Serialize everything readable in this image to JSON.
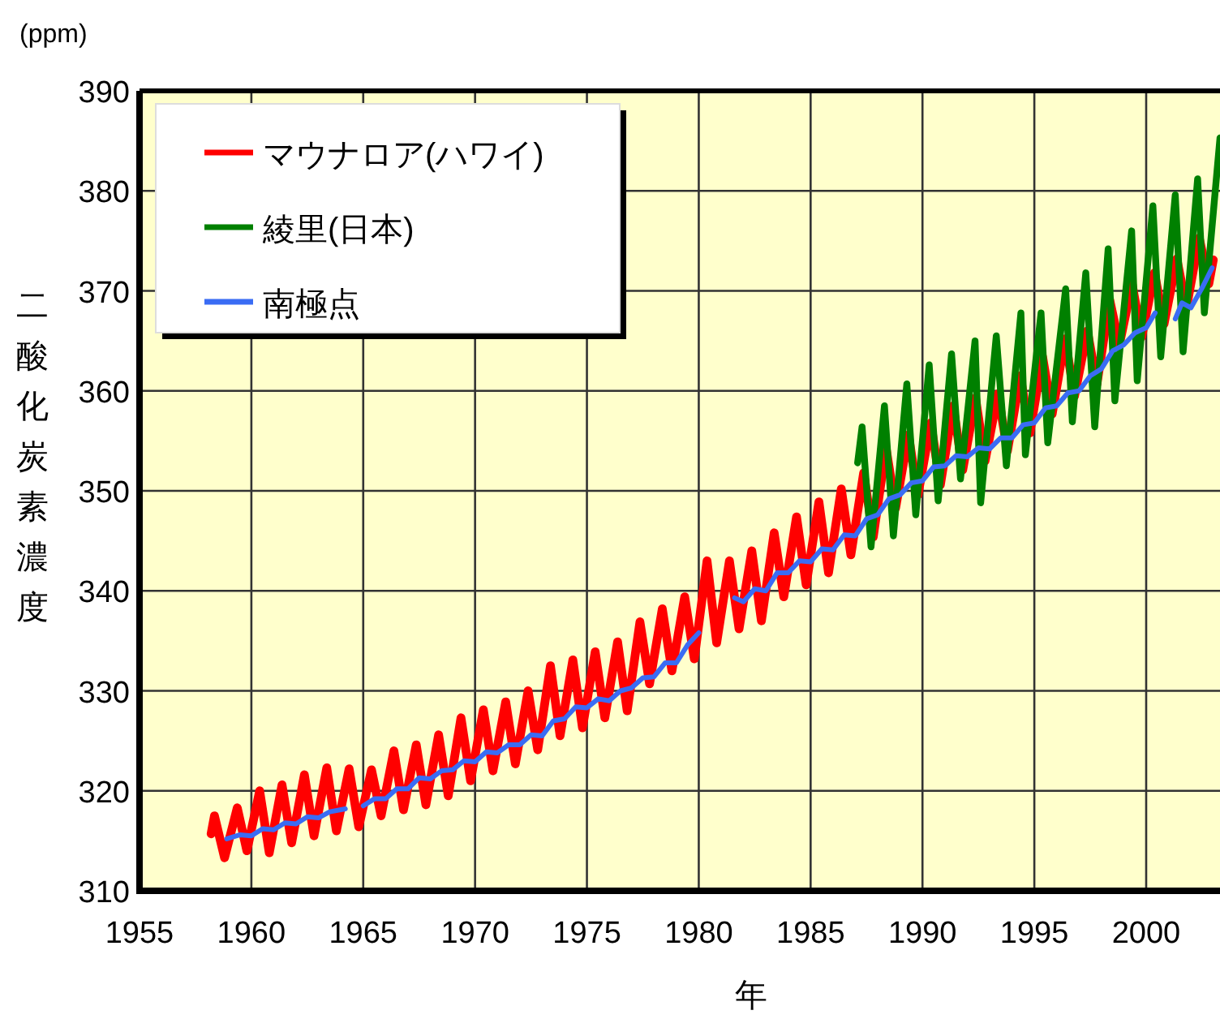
{
  "chart_data": {
    "type": "line",
    "xlabel": "年",
    "ylabel": "二酸化炭素濃度",
    "annotations": [
      "(ppm)"
    ],
    "xlim": [
      1955,
      2003.3
    ],
    "ylim": [
      310,
      390
    ],
    "xticks": [
      1955,
      1960,
      1965,
      1970,
      1975,
      1980,
      1985,
      1990,
      1995,
      2000
    ],
    "yticks": [
      310,
      320,
      330,
      340,
      350,
      360,
      370,
      380,
      390
    ],
    "grid": true,
    "legend": "top left",
    "series": [
      {
        "name": "マウナロア(ハワイ)",
        "color": "#ff0000",
        "x": [
          1958.2,
          1958.35,
          1958.8,
          1959.37,
          1959.8,
          1960.37,
          1960.8,
          1961.37,
          1961.8,
          1962.37,
          1962.8,
          1963.37,
          1963.8,
          1964.37,
          1964.8,
          1965.37,
          1965.8,
          1966.37,
          1966.8,
          1967.37,
          1967.8,
          1968.37,
          1968.8,
          1969.37,
          1969.8,
          1970.37,
          1970.8,
          1971.37,
          1971.8,
          1972.37,
          1972.8,
          1973.37,
          1973.8,
          1974.37,
          1974.8,
          1975.37,
          1975.8,
          1976.37,
          1976.8,
          1977.37,
          1977.8,
          1978.37,
          1978.8,
          1979.37,
          1979.8,
          1980.37,
          1980.8,
          1981.37,
          1981.8,
          1982.37,
          1982.8,
          1983.37,
          1983.8,
          1984.37,
          1984.8,
          1985.37,
          1985.8,
          1986.37,
          1986.8,
          1987.37,
          1987.8,
          1988.37,
          1988.8,
          1989.37,
          1989.8,
          1990.37,
          1990.8,
          1991.37,
          1991.8,
          1992.37,
          1992.8,
          1993.37,
          1993.8,
          1994.37,
          1994.8,
          1995.37,
          1995.8,
          1996.37,
          1996.8,
          1997.37,
          1997.8,
          1998.37,
          1998.8,
          1999.37,
          1999.8,
          2000.37,
          2000.8,
          2001.37,
          2001.8,
          2002.37,
          2002.8,
          2003.0
        ],
        "values": [
          315.7,
          317.5,
          313.3,
          318.3,
          314.0,
          320.0,
          313.8,
          320.6,
          314.8,
          321.6,
          315.5,
          322.3,
          316.0,
          322.2,
          316.4,
          322.1,
          317.5,
          324.0,
          318.1,
          324.6,
          318.6,
          325.6,
          319.5,
          327.3,
          321.0,
          328.1,
          322.0,
          328.9,
          322.7,
          330.0,
          324.1,
          332.5,
          325.5,
          333.1,
          326.3,
          333.9,
          327.3,
          334.9,
          328.0,
          336.9,
          330.7,
          338.2,
          332.0,
          339.4,
          333.2,
          343.0,
          334.8,
          343.0,
          336.2,
          344.0,
          337.0,
          345.8,
          339.4,
          347.4,
          340.6,
          348.9,
          341.8,
          350.2,
          343.6,
          351.8,
          345.4,
          354.3,
          348.3,
          355.6,
          349.6,
          356.8,
          350.6,
          358.5,
          352.1,
          359.3,
          353.0,
          359.7,
          354.0,
          361.5,
          355.8,
          363.4,
          357.7,
          365.2,
          359.5,
          366.0,
          360.7,
          369.1,
          364.6,
          370.7,
          365.4,
          371.8,
          366.7,
          373.2,
          368.3,
          375.3,
          370.7,
          373.1
        ]
      },
      {
        "name": "綾里(日本)",
        "color": "#008000",
        "x": [
          1987.1,
          1987.3,
          1987.7,
          1988.3,
          1988.7,
          1989.3,
          1989.7,
          1990.3,
          1990.7,
          1991.3,
          1991.7,
          1992.35,
          1992.6,
          1993.3,
          1993.75,
          1994.4,
          1994.6,
          1995.3,
          1995.6,
          1996.4,
          1996.7,
          1997.3,
          1997.7,
          1998.3,
          1998.6,
          1999.35,
          1999.6,
          2000.3,
          2000.65,
          2001.3,
          2001.65,
          2002.3,
          2002.6,
          2003.3
        ],
        "values": [
          352.8,
          356.4,
          344.4,
          358.5,
          345.5,
          360.7,
          347.6,
          362.6,
          349.0,
          363.7,
          351.2,
          365.0,
          348.8,
          365.5,
          352.5,
          367.8,
          353.6,
          367.8,
          354.8,
          370.2,
          356.9,
          371.8,
          356.4,
          374.2,
          359.0,
          376.0,
          361.0,
          378.5,
          363.4,
          379.6,
          363.9,
          381.2,
          367.8,
          385.3
        ]
      },
      {
        "name": "南極点",
        "color": "#3a6cf4",
        "x": [
          1958.9,
          1959.5,
          1960.0,
          1960.5,
          1961.0,
          1961.5,
          1962.0,
          1962.5,
          1963.0,
          1963.5,
          1964.2,
          null,
          1965.0,
          1965.5,
          1966.0,
          1966.5,
          1967.0,
          1967.5,
          1968.0,
          1968.5,
          1969.0,
          1969.5,
          1970.0,
          1970.5,
          1971.0,
          1971.5,
          1972.0,
          1972.5,
          1973.0,
          1973.5,
          1974.0,
          1974.5,
          1975.0,
          1975.5,
          1976.0,
          1976.5,
          1977.0,
          1977.5,
          1978.0,
          1978.5,
          1979.0,
          1979.5,
          1980.0,
          null,
          1981.6,
          1982.0,
          1982.5,
          1983.0,
          1983.5,
          1984.0,
          1984.5,
          1985.0,
          1985.5,
          1986.0,
          1986.5,
          1987.0,
          1987.5,
          1988.0,
          1988.5,
          1989.0,
          1989.5,
          1990.0,
          1990.5,
          1991.0,
          1991.5,
          1992.0,
          1992.5,
          1993.0,
          1993.5,
          1994.0,
          1994.5,
          1995.0,
          1995.5,
          1996.0,
          1996.5,
          1997.0,
          1997.5,
          1998.0,
          1998.5,
          1999.0,
          1999.5,
          2000.0,
          2000.4,
          null,
          2001.3,
          2001.6,
          2002.0,
          2002.5,
          2002.95
        ],
        "values": [
          315.2,
          315.6,
          315.5,
          316.2,
          316.1,
          316.8,
          316.7,
          317.4,
          317.3,
          317.9,
          318.2,
          null,
          318.5,
          319.2,
          319.2,
          320.2,
          320.2,
          321.3,
          321.2,
          322.0,
          322.1,
          323.0,
          322.9,
          323.9,
          323.8,
          324.6,
          324.6,
          325.6,
          325.5,
          327.0,
          327.2,
          328.4,
          328.3,
          329.2,
          329.0,
          330.0,
          330.3,
          331.3,
          331.4,
          332.8,
          332.8,
          334.6,
          335.8,
          null,
          339.3,
          338.9,
          340.2,
          340.0,
          341.8,
          341.8,
          343.0,
          342.9,
          344.2,
          344.1,
          345.6,
          345.5,
          347.2,
          347.6,
          349.2,
          349.6,
          350.8,
          351.0,
          352.4,
          352.5,
          353.5,
          353.4,
          354.3,
          354.2,
          355.3,
          355.3,
          356.6,
          356.8,
          358.3,
          358.5,
          359.8,
          360.0,
          361.5,
          362.2,
          364.0,
          364.6,
          365.8,
          366.3,
          367.8,
          null,
          367.2,
          368.8,
          368.3,
          370.3,
          372.3
        ]
      }
    ]
  }
}
